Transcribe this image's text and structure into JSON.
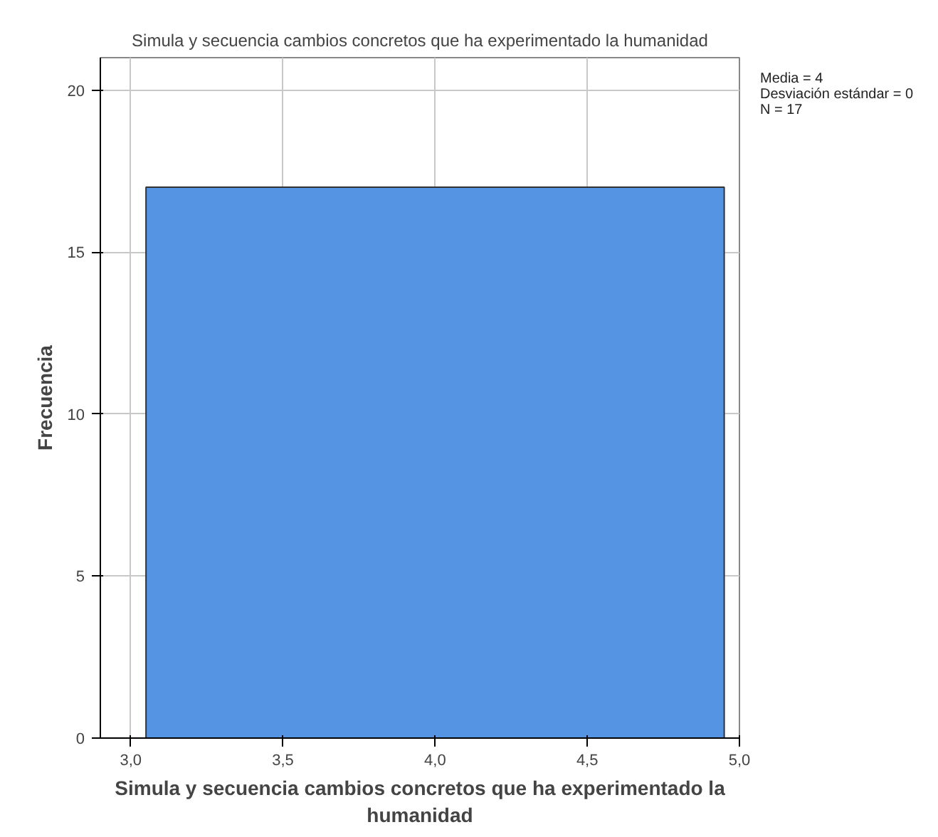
{
  "chart_data": {
    "type": "histogram",
    "title": "Simula y secuencia cambios concretos que ha experimentado la humanidad",
    "xlabel": "Simula y secuencia cambios concretos que ha experimentado la humanidad",
    "ylabel": "Frecuencia",
    "bins": [
      3.05,
      4.95
    ],
    "values": [
      17
    ],
    "color": "#5594e2",
    "xlim": [
      2.9,
      5.0
    ],
    "ylim": [
      0,
      21
    ],
    "xticks": [
      {
        "value": 3,
        "label": "3,0"
      },
      {
        "value": 3.5,
        "label": "3,5"
      },
      {
        "value": 4,
        "label": "4,0"
      },
      {
        "value": 4.5,
        "label": "4,5"
      },
      {
        "value": 5,
        "label": "5,0"
      }
    ],
    "yticks": [
      0,
      5,
      10,
      15,
      20
    ],
    "grid": true,
    "annotations": [
      "Media = 4",
      "Desviación estándar = 0",
      "N = 17"
    ]
  }
}
